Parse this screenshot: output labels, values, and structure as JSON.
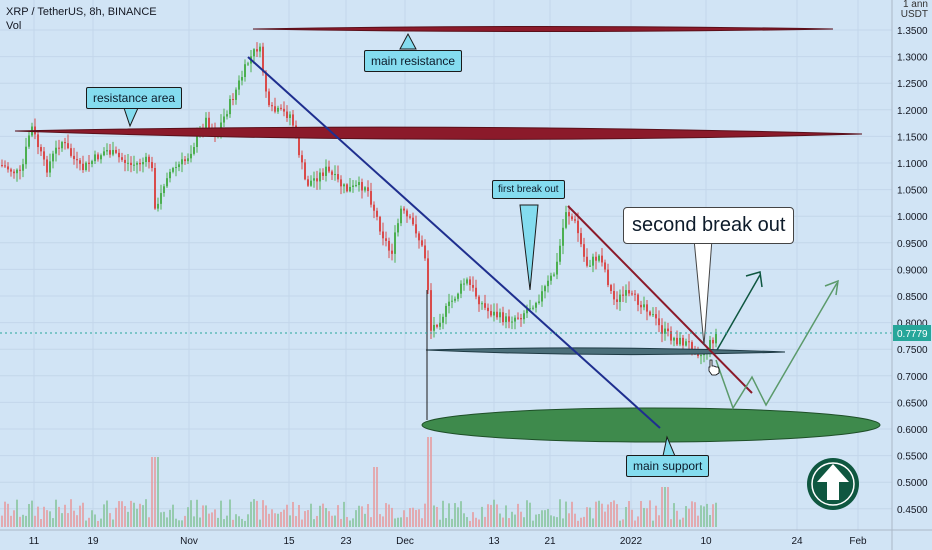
{
  "header": {
    "symbol_line": "XRP / TetherUS, 8h, BINANCE",
    "volume_label": "Vol"
  },
  "price_axis": {
    "currency_lines": [
      "1 ann",
      "USDT"
    ],
    "ticks": [
      "1.3500",
      "1.3000",
      "1.2500",
      "1.2000",
      "1.1500",
      "1.1000",
      "1.0500",
      "1.0000",
      "0.9500",
      "0.9000",
      "0.8500",
      "0.8000",
      "0.7500",
      "0.7000",
      "0.6500",
      "0.6000",
      "0.5500",
      "0.5000",
      "0.4500"
    ],
    "current_price": "0.7779",
    "current_price_color": "#26a69a"
  },
  "time_axis": {
    "ticks": [
      "11",
      "19",
      "Nov",
      "15",
      "23",
      "Dec",
      "13",
      "21",
      "2022",
      "10",
      "24",
      "Feb"
    ]
  },
  "annotations": {
    "main_resistance": "main resistance",
    "resistance_area": "resistance area",
    "first_break_out": "first break out",
    "second_break_out": "second break out",
    "main_support": "main support"
  },
  "colors": {
    "background": "#d1e4f5",
    "up_candle": "#4caf50",
    "down_candle": "#d94b4b",
    "resistance_band": "#8b1a2a",
    "support_band": "#3e8a4c",
    "callout": "#84dcef",
    "trendline_blue": "#1f2f8f",
    "trendline_red": "#8b1a2a",
    "logo": "#0f5740"
  },
  "icons": {
    "logo": "up-arrow-circle-icon",
    "cursor": "hand-cursor-icon"
  }
}
